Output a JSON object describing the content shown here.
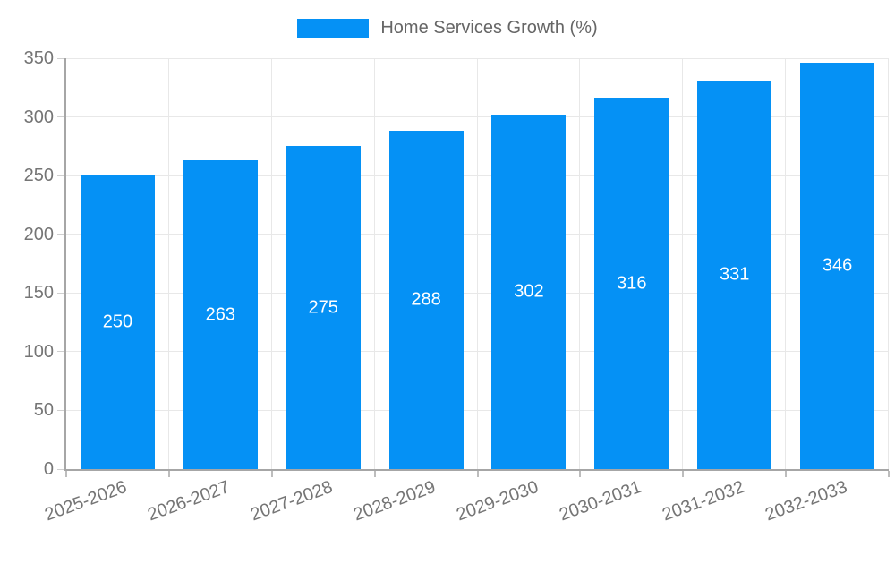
{
  "legend": {
    "label": "Home Services Growth (%)",
    "swatch_color": "#0591f5"
  },
  "chart_data": {
    "type": "bar",
    "title": "Home Services Growth (%)",
    "categories": [
      "2025-2026",
      "2026-2027",
      "2027-2028",
      "2028-2029",
      "2029-2030",
      "2030-2031",
      "2031-2032",
      "2032-2033"
    ],
    "series": [
      {
        "name": "Home Services Growth (%)",
        "values": [
          250,
          263,
          275,
          288,
          302,
          316,
          331,
          346
        ]
      }
    ],
    "xlabel": "",
    "ylabel": "",
    "ylim": [
      0,
      350
    ],
    "ytick_step": 50,
    "yticks": [
      0,
      50,
      100,
      150,
      200,
      250,
      300,
      350
    ],
    "grid": true,
    "legend_position": "top",
    "x_label_rotation_deg": -20,
    "bar_color": "#0591f5",
    "value_label_color": "#ffffff",
    "axis_text_color": "#757575",
    "gridline_color": "#e8e8e8",
    "axis_line_color": "#a6a6a6"
  }
}
